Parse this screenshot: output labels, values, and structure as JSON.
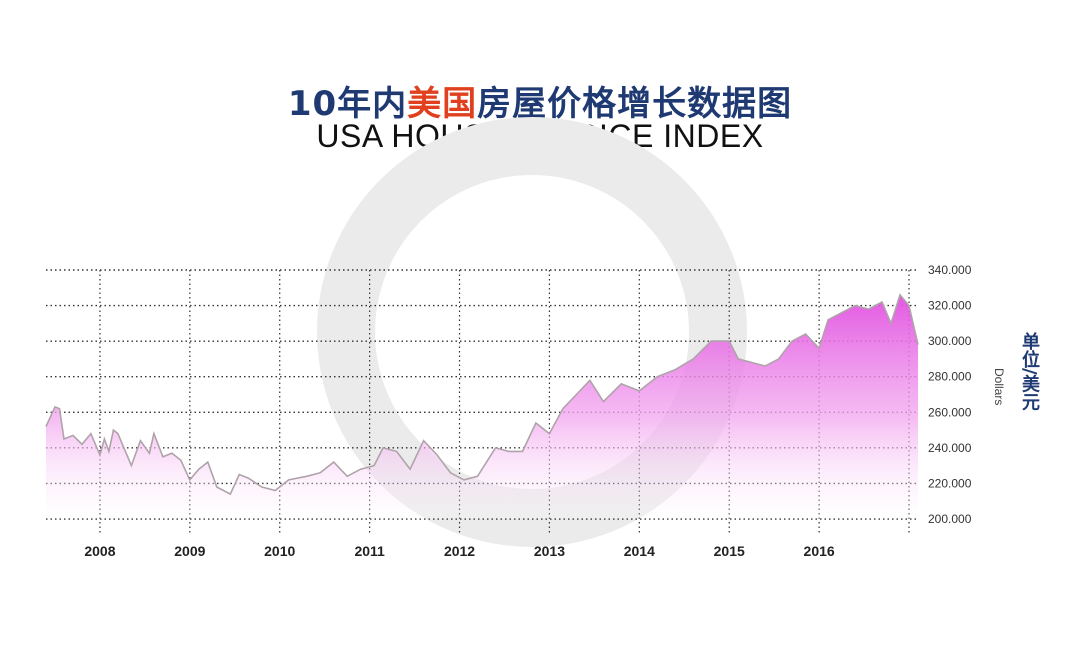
{
  "title": {
    "cn_part1": "10年内",
    "cn_highlight": "美国",
    "cn_part2": "房屋价格增长数据图",
    "en": "USA HOUSING PRICE INDEX"
  },
  "unit": {
    "cn": "单位/美元",
    "en": "Dollars"
  },
  "colors": {
    "title_blue": "#1f3a73",
    "title_highlight": "#e0401f",
    "fill_top": "#e14fe0",
    "fill_bottom": "#ffffff",
    "line": "#b0a3aa",
    "watermark": "#e9e9e9"
  },
  "chart_data": {
    "type": "area",
    "title": "USA HOUSING PRICE INDEX",
    "ylabel": "Dollars",
    "ylim": [
      200000,
      340000
    ],
    "ytick_labels": [
      "340.000",
      "320.000",
      "300.000",
      "280.000",
      "260.000",
      "240.000",
      "220.000",
      "200.000"
    ],
    "ytick_values": [
      340000,
      320000,
      300000,
      280000,
      260000,
      240000,
      220000,
      200000
    ],
    "xtick_labels": [
      "2008",
      "2009",
      "2010",
      "2011",
      "2012",
      "2013",
      "2014",
      "2015",
      "2016"
    ],
    "xlim": [
      2007.4,
      2017.1
    ],
    "grid": true,
    "series": [
      {
        "x": [
          2007.4,
          2007.5,
          2007.55,
          2007.6,
          2007.7,
          2007.8,
          2007.9,
          2008.0,
          2008.05,
          2008.1,
          2008.15,
          2008.2,
          2008.35,
          2008.45,
          2008.55,
          2008.6,
          2008.7,
          2008.8,
          2008.9,
          2009.0,
          2009.1,
          2009.2,
          2009.3,
          2009.45,
          2009.55,
          2009.65,
          2009.8,
          2009.95,
          2010.1,
          2010.3,
          2010.45,
          2010.6,
          2010.75,
          2010.9,
          2011.05,
          2011.15,
          2011.3,
          2011.45,
          2011.6,
          2011.75,
          2011.9,
          2012.05,
          2012.2,
          2012.4,
          2012.55,
          2012.7,
          2012.85,
          2013.0,
          2013.15,
          2013.3,
          2013.45,
          2013.6,
          2013.8,
          2014.0,
          2014.2,
          2014.4,
          2014.6,
          2014.8,
          2015.0,
          2015.1,
          2015.25,
          2015.4,
          2015.55,
          2015.7,
          2015.85,
          2016.0,
          2016.1,
          2016.25,
          2016.4,
          2016.55,
          2016.7,
          2016.8,
          2016.9,
          2017.0,
          2017.1
        ],
        "values": [
          252000,
          263000,
          262000,
          245000,
          247000,
          242000,
          248000,
          236000,
          245000,
          238000,
          250000,
          248000,
          230000,
          244000,
          237000,
          248000,
          235000,
          237000,
          233000,
          222000,
          228000,
          232000,
          218000,
          214000,
          225000,
          223000,
          218000,
          216000,
          222000,
          224000,
          226000,
          232000,
          224000,
          228000,
          230000,
          240000,
          238000,
          228000,
          244000,
          236000,
          226000,
          222000,
          224000,
          240000,
          238000,
          238000,
          254000,
          248000,
          262000,
          270000,
          278000,
          266000,
          276000,
          272000,
          280000,
          284000,
          290000,
          300000,
          300000,
          290000,
          288000,
          286000,
          290000,
          300000,
          304000,
          296000,
          312000,
          316000,
          320000,
          318000,
          322000,
          310000,
          326000,
          320000,
          298000
        ]
      }
    ]
  }
}
